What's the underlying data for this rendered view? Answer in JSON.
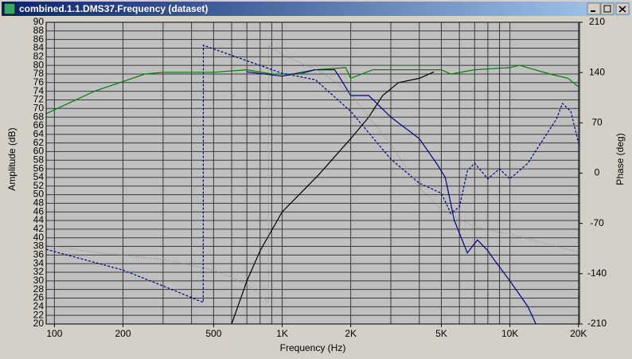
{
  "window": {
    "title": "combined.1.1.DMS37.Frequency (dataset)"
  },
  "chart_data": {
    "type": "line",
    "x_label": "Frequency (Hz)",
    "y_label": "Amplitude (dB)",
    "y2_label": "Phase (deg)",
    "log_x": true,
    "grid": true,
    "xlim": [
      92,
      20200
    ],
    "xticks": [
      {
        "value": 100,
        "label": "100"
      },
      {
        "value": 200,
        "label": "200"
      },
      {
        "value": 500,
        "label": "500"
      },
      {
        "value": 1000,
        "label": "1K"
      },
      {
        "value": 2000,
        "label": "2K"
      },
      {
        "value": 5000,
        "label": "5K"
      },
      {
        "value": 10000,
        "label": "10K"
      },
      {
        "value": 20000,
        "label": "20K"
      }
    ],
    "xgrid": [
      100,
      200,
      300,
      400,
      500,
      600,
      700,
      800,
      900,
      1000,
      2000,
      3000,
      4000,
      5000,
      6000,
      7000,
      8000,
      9000,
      10000,
      20000
    ],
    "ylim": [
      20,
      90
    ],
    "yticks": [
      20,
      22,
      24,
      26,
      28,
      30,
      32,
      34,
      36,
      38,
      40,
      42,
      44,
      46,
      48,
      50,
      52,
      54,
      56,
      58,
      60,
      62,
      64,
      66,
      68,
      70,
      72,
      74,
      76,
      78,
      80,
      82,
      84,
      86,
      88,
      90
    ],
    "y2lim": [
      -210,
      210
    ],
    "y2ticks": [
      -210,
      -140,
      -70,
      0,
      70,
      140,
      210
    ],
    "series": [
      {
        "color": "#008000",
        "line_style": "solid",
        "x": [
          92,
          150,
          250,
          300,
          500,
          700,
          900,
          1200,
          1400,
          1900,
          2000,
          2500,
          5000,
          5500,
          7000,
          10000,
          11000,
          15000,
          18000,
          20000
        ],
        "values": [
          68.8,
          74,
          78,
          78.4,
          78.4,
          79,
          78,
          78,
          79,
          79.5,
          77,
          79,
          79,
          78,
          79,
          79.5,
          80,
          78,
          77,
          75
        ]
      },
      {
        "color": "#000000",
        "line_style": "solid",
        "x": [
          600,
          700,
          800,
          1000,
          1440,
          2000,
          2400,
          2760,
          3240,
          4000,
          4640
        ],
        "values": [
          20,
          30,
          37,
          46,
          54.5,
          63,
          68,
          73,
          76,
          77,
          78.5
        ]
      },
      {
        "color": "#000080",
        "line_style": "solid",
        "x": [
          700,
          1000,
          1400,
          1700,
          1800,
          2000,
          2400,
          3000,
          4000,
          4800,
          5200,
          5700,
          6500,
          7200,
          8000,
          8500,
          10000,
          12000,
          13000
        ],
        "values": [
          78.5,
          77.5,
          79,
          79,
          77,
          73,
          73,
          68,
          63,
          57,
          54,
          44,
          36.5,
          39.5,
          37,
          35,
          30,
          24,
          20
        ]
      },
      {
        "color": "#000080",
        "line_style": "dashed",
        "axis": "y2",
        "x": [
          92,
          200,
          300,
          450,
          451,
          1000,
          1400,
          2000,
          3000,
          4000,
          5000,
          5500,
          6000,
          6500,
          7000,
          8000,
          9000,
          10000,
          12000,
          14000,
          16000,
          17000,
          18500,
          20000
        ],
        "values": [
          -106,
          -135,
          -157,
          -180,
          178,
          139,
          130,
          86,
          19.5,
          -14,
          -28,
          -56,
          -47,
          3,
          14,
          -8,
          6,
          -8,
          14,
          47,
          75,
          97,
          86,
          42
        ]
      },
      {
        "color": "#8c8c8c",
        "line_style": "dotted",
        "axis": "y2",
        "x": [
          92,
          150,
          300,
          500,
          700,
          870,
          871,
          1000,
          1500,
          2000,
          3000,
          4000,
          5000,
          7000,
          10000,
          20000
        ],
        "values": [
          -100,
          -110,
          -120,
          -135,
          -155,
          -180,
          178,
          165,
          140,
          110,
          40,
          -20,
          -50,
          -75,
          -85,
          -110
        ]
      }
    ]
  }
}
